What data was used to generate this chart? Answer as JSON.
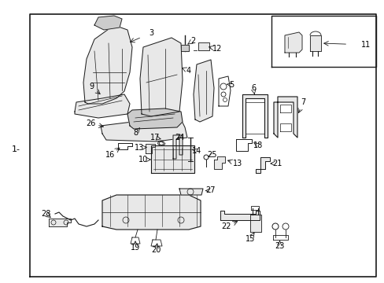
{
  "bg_color": "#ffffff",
  "border_color": "#000000",
  "text_color": "#000000",
  "fig_width": 4.89,
  "fig_height": 3.6,
  "dpi": 100,
  "left_label": "1-",
  "line_color": "#1a1a1a",
  "fill_light": "#e8e8e8",
  "fill_medium": "#cccccc",
  "fill_dark": "#aaaaaa"
}
